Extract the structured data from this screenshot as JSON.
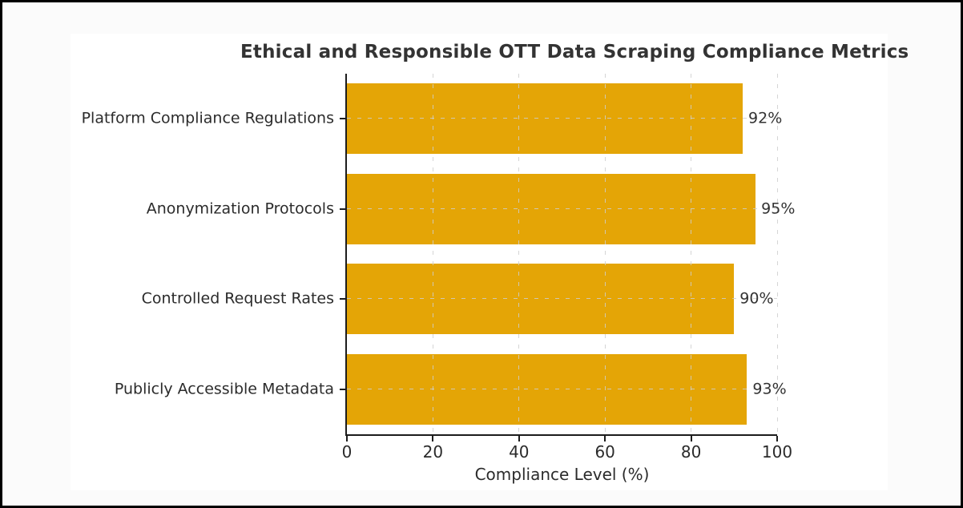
{
  "frame": {
    "border_color": "#000000",
    "background_color": "#fbfbfb",
    "figure_background_color": "#ffffff"
  },
  "chart_data": {
    "type": "bar",
    "orientation": "horizontal",
    "title": "Ethical and Responsible OTT Data Scraping Compliance Metrics",
    "xlabel": "Compliance Level (%)",
    "ylabel": "",
    "categories": [
      "Platform Compliance Regulations",
      "Anonymization Protocols",
      "Controlled Request Rates",
      "Publicly Accessible Metadata"
    ],
    "values": [
      92,
      95,
      90,
      93
    ],
    "value_labels": [
      "92%",
      "95%",
      "90%",
      "93%"
    ],
    "xlim": [
      0,
      100
    ],
    "xticks": [
      0,
      20,
      40,
      60,
      80,
      100
    ],
    "xtick_labels": [
      "0",
      "20",
      "40",
      "60",
      "80",
      "100"
    ],
    "bar_color": "#E4A506",
    "grid": {
      "style": "dashed",
      "color": "#cecece",
      "x": true,
      "y": true,
      "above_bars": true
    },
    "legend": "none",
    "title_color": "#333333",
    "text_color": "#2b2b2b",
    "spine_color": "#1c1c1c"
  }
}
